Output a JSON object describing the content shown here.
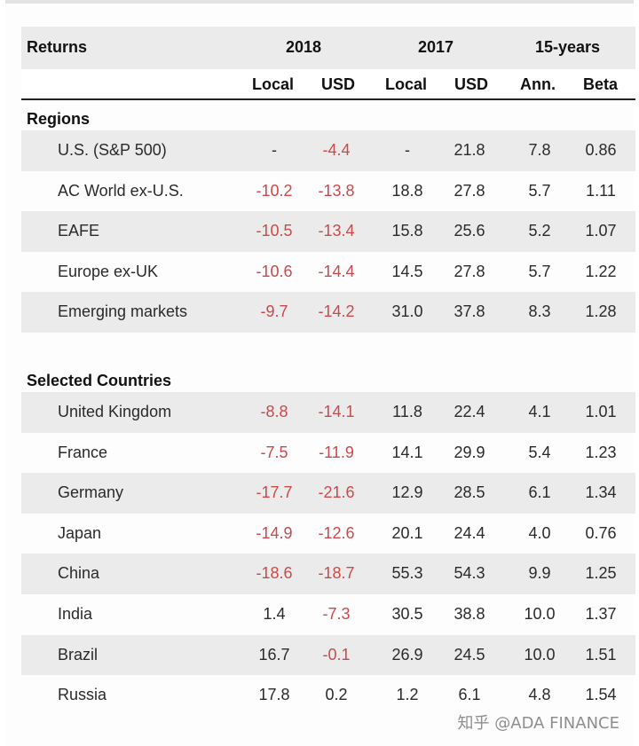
{
  "header": {
    "title": "Returns",
    "group_2018": "2018",
    "group_2017": "2017",
    "group_15y": "15-years",
    "sub": [
      "Local",
      "USD",
      "Local",
      "USD",
      "Ann.",
      "Beta"
    ]
  },
  "sections": [
    {
      "label": "Regions",
      "rows": [
        {
          "name": "U.S. (S&P 500)",
          "vals": [
            "-",
            "-4.4",
            "-",
            "21.8",
            "7.8",
            "0.86"
          ],
          "neg": [
            false,
            true,
            false,
            false,
            false,
            false
          ]
        },
        {
          "name": "AC World ex-U.S.",
          "vals": [
            "-10.2",
            "-13.8",
            "18.8",
            "27.8",
            "5.7",
            "1.11"
          ],
          "neg": [
            true,
            true,
            false,
            false,
            false,
            false
          ]
        },
        {
          "name": "EAFE",
          "vals": [
            "-10.5",
            "-13.4",
            "15.8",
            "25.6",
            "5.2",
            "1.07"
          ],
          "neg": [
            true,
            true,
            false,
            false,
            false,
            false
          ]
        },
        {
          "name": "Europe ex-UK",
          "vals": [
            "-10.6",
            "-14.4",
            "14.5",
            "27.8",
            "5.7",
            "1.22"
          ],
          "neg": [
            true,
            true,
            false,
            false,
            false,
            false
          ]
        },
        {
          "name": "Emerging markets",
          "vals": [
            "-9.7",
            "-14.2",
            "31.0",
            "37.8",
            "8.3",
            "1.28"
          ],
          "neg": [
            true,
            true,
            false,
            false,
            false,
            false
          ]
        }
      ]
    },
    {
      "label": "Selected Countries",
      "rows": [
        {
          "name": "United Kingdom",
          "vals": [
            "-8.8",
            "-14.1",
            "11.8",
            "22.4",
            "4.1",
            "1.01"
          ],
          "neg": [
            true,
            true,
            false,
            false,
            false,
            false
          ]
        },
        {
          "name": "France",
          "vals": [
            "-7.5",
            "-11.9",
            "14.1",
            "29.9",
            "5.4",
            "1.23"
          ],
          "neg": [
            true,
            true,
            false,
            false,
            false,
            false
          ]
        },
        {
          "name": "Germany",
          "vals": [
            "-17.7",
            "-21.6",
            "12.9",
            "28.5",
            "6.1",
            "1.34"
          ],
          "neg": [
            true,
            true,
            false,
            false,
            false,
            false
          ]
        },
        {
          "name": "Japan",
          "vals": [
            "-14.9",
            "-12.6",
            "20.1",
            "24.4",
            "4.0",
            "0.76"
          ],
          "neg": [
            true,
            true,
            false,
            false,
            false,
            false
          ]
        },
        {
          "name": "China",
          "vals": [
            "-18.6",
            "-18.7",
            "55.3",
            "54.3",
            "9.9",
            "1.25"
          ],
          "neg": [
            true,
            true,
            false,
            false,
            false,
            false
          ]
        },
        {
          "name": "India",
          "vals": [
            "1.4",
            "-7.3",
            "30.5",
            "38.8",
            "10.0",
            "1.37"
          ],
          "neg": [
            false,
            true,
            false,
            false,
            false,
            false
          ]
        },
        {
          "name": "Brazil",
          "vals": [
            "16.7",
            "-0.1",
            "26.9",
            "24.5",
            "10.0",
            "1.51"
          ],
          "neg": [
            false,
            true,
            false,
            false,
            false,
            false
          ]
        },
        {
          "name": "Russia",
          "vals": [
            "17.8",
            "0.2",
            "1.2",
            "6.1",
            "4.8",
            "1.54"
          ],
          "neg": [
            false,
            false,
            false,
            false,
            false,
            false
          ]
        }
      ]
    }
  ],
  "colors": {
    "negative": "#c94a4a",
    "shade": "#ebebeb"
  },
  "watermark": "知乎 @ADA FINANCE"
}
